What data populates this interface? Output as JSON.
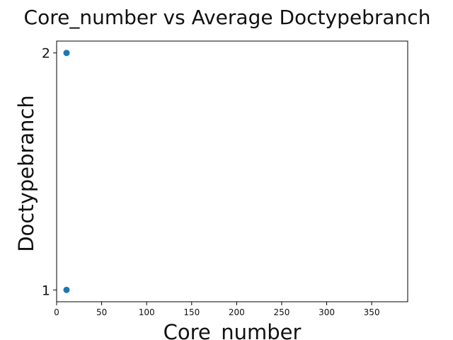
{
  "chart_data": {
    "type": "scatter",
    "title": "Core_number vs Average Doctypebranch",
    "xlabel": "Core_number",
    "ylabel": "Doctypebranch",
    "xlim": [
      0,
      390
    ],
    "ylim": [
      0.95,
      2.05
    ],
    "xticks": [
      0,
      50,
      100,
      150,
      200,
      250,
      300,
      350
    ],
    "yticks": [
      1,
      2
    ],
    "grid": false,
    "series": [
      {
        "color": "#1f77b4",
        "points": [
          {
            "x": 11,
            "y": 2
          },
          {
            "x": 11,
            "y": 1
          }
        ]
      }
    ]
  }
}
